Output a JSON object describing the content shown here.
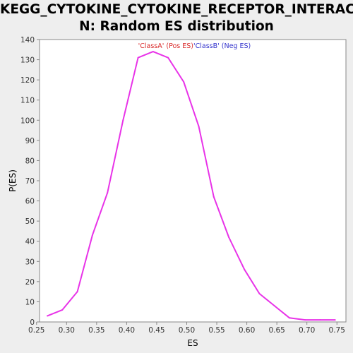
{
  "chart_data": {
    "type": "line",
    "title_lines": [
      "KEGG_CYTOKINE_CYTOKINE_RECEPTOR_INTERACTIO",
      "N: Random ES distribution"
    ],
    "xlabel": "ES",
    "ylabel": "P(ES)",
    "xlim": [
      0.255,
      0.765
    ],
    "ylim": [
      0,
      140
    ],
    "x_ticks": [
      "0.25",
      "0.30",
      "0.35",
      "0.40",
      "0.45",
      "0.50",
      "0.55",
      "0.60",
      "0.65",
      "0.70",
      "0.75"
    ],
    "y_ticks": [
      "0",
      "10",
      "20",
      "30",
      "40",
      "50",
      "60",
      "70",
      "80",
      "90",
      "100",
      "110",
      "120",
      "130",
      "140"
    ],
    "grid": false,
    "legend": [
      {
        "label": "'ClassA' (Pos ES)",
        "color": "#d92b2b"
      },
      {
        "label": "'ClassB' (Neg ES)",
        "color": "#3333cc"
      }
    ],
    "series": [
      {
        "color": "#e833e8",
        "x": [
          0.268,
          0.293,
          0.318,
          0.343,
          0.368,
          0.394,
          0.419,
          0.444,
          0.469,
          0.495,
          0.52,
          0.545,
          0.57,
          0.596,
          0.621,
          0.646,
          0.671,
          0.697,
          0.722,
          0.747
        ],
        "y": [
          3,
          6,
          15,
          43,
          64,
          100,
          131,
          134,
          131,
          119,
          97,
          62,
          42,
          26,
          14,
          8,
          2,
          1,
          1,
          1
        ]
      }
    ]
  }
}
